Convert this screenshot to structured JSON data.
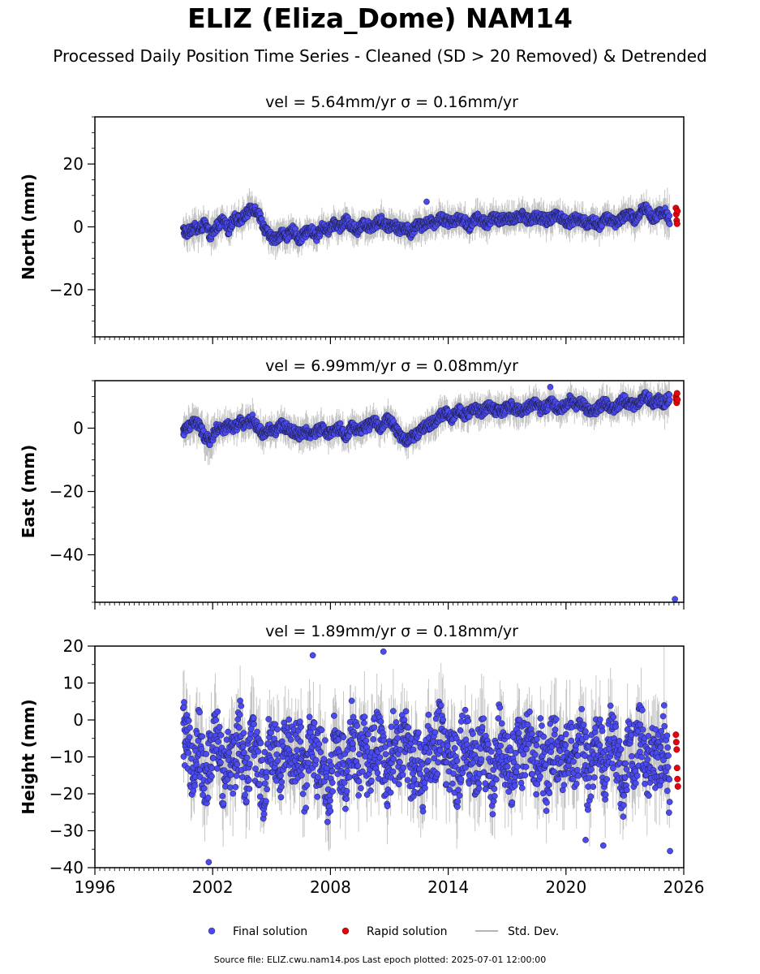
{
  "title": "ELIZ (Eliza_Dome) NAM14",
  "subtitle": "Processed Daily Position Time Series - Cleaned (SD > 20 Removed) & Detrended",
  "footer": "Source file: ELIZ.cwu.nam14.pos  Last epoch plotted: 2025-07-01 12:00:00",
  "colors": {
    "final": "#4a4af0",
    "rapid": "#e8000b",
    "stddev": "#b4b4b4"
  },
  "legend": {
    "final_label": "Final solution",
    "rapid_label": "Rapid solution",
    "stddev_label": "Std. Dev."
  },
  "chart_data": [
    {
      "type": "scatter",
      "title": "vel = 5.64mm/yr   σ = 0.16mm/yr",
      "ylabel": "North (mm)",
      "xlim": [
        1996,
        2026
      ],
      "ylim": [
        -35,
        35
      ],
      "yticks": [
        -20,
        0,
        20
      ],
      "xticks": [
        1996,
        2002,
        2008,
        2014,
        2020,
        2026
      ],
      "grid": false,
      "series": [
        {
          "name": "Final solution",
          "x": [
            2000.5,
            2000.7,
            2001.0,
            2001.3,
            2001.6,
            2001.9,
            2002.2,
            2002.5,
            2002.8,
            2003.1,
            2003.4,
            2003.7,
            2004.0,
            2004.3,
            2004.6,
            2004.9,
            2005.2,
            2005.5,
            2005.8,
            2006.1,
            2006.4,
            2006.7,
            2007.0,
            2007.3,
            2007.6,
            2007.9,
            2008.2,
            2008.5,
            2008.8,
            2009.1,
            2009.4,
            2009.7,
            2010.0,
            2010.3,
            2010.6,
            2010.9,
            2011.2,
            2011.5,
            2011.8,
            2012.1,
            2012.4,
            2012.7,
            2013.0,
            2013.3,
            2013.6,
            2013.9,
            2014.2,
            2014.5,
            2014.8,
            2015.1,
            2015.4,
            2015.7,
            2016.0,
            2016.3,
            2016.6,
            2016.9,
            2017.2,
            2017.5,
            2017.8,
            2018.1,
            2018.4,
            2018.7,
            2019.0,
            2019.3,
            2019.6,
            2019.9,
            2020.2,
            2020.5,
            2020.8,
            2021.1,
            2021.4,
            2021.7,
            2022.0,
            2022.3,
            2022.6,
            2022.9,
            2023.2,
            2023.5,
            2023.8,
            2024.1,
            2024.4,
            2024.7,
            2025.0,
            2025.3
          ],
          "y": [
            -1,
            -2,
            0,
            -1,
            1,
            -3,
            0,
            2,
            -1,
            3,
            2,
            4,
            6,
            5,
            0,
            -3,
            -4,
            -2,
            -3,
            -1,
            -4,
            -2,
            -1,
            -3,
            0,
            -1,
            1,
            0,
            2,
            0,
            -1,
            1,
            0,
            1,
            2,
            0,
            1,
            -1,
            0,
            -2,
            1,
            0,
            2,
            1,
            3,
            2,
            1,
            3,
            2,
            0,
            3,
            2,
            1,
            3,
            2,
            3,
            2,
            3,
            4,
            2,
            3,
            3,
            2,
            3,
            4,
            2,
            1,
            3,
            2,
            1,
            2,
            0,
            3,
            2,
            1,
            3,
            4,
            2,
            5,
            6,
            3,
            4,
            5,
            2
          ],
          "sd": [
            4,
            4,
            5,
            4,
            4,
            5,
            4,
            4,
            4,
            4,
            4,
            4,
            4,
            4,
            4,
            4,
            4,
            4,
            4,
            4,
            4,
            4,
            4,
            4,
            4,
            4,
            4,
            4,
            4,
            4,
            4,
            4,
            4,
            4,
            4,
            4,
            4,
            4,
            4,
            4,
            4,
            4,
            4,
            4,
            4,
            4,
            4,
            4,
            4,
            4,
            4,
            4,
            4,
            4,
            4,
            4,
            4,
            4,
            4,
            4,
            4,
            4,
            4,
            4,
            4,
            4,
            4,
            4,
            4,
            4,
            4,
            4,
            4,
            4,
            4,
            4,
            4,
            4,
            4,
            4,
            4,
            4,
            6,
            6
          ]
        },
        {
          "name": "Rapid solution",
          "x": [
            2025.6,
            2025.62,
            2025.64,
            2025.66,
            2025.68
          ],
          "y": [
            6,
            4,
            2,
            1,
            5
          ],
          "sd": [
            0,
            0,
            0,
            0,
            0
          ]
        }
      ],
      "outliers": [
        {
          "x": 2012.9,
          "y": 8
        }
      ]
    },
    {
      "type": "scatter",
      "title": "vel = 6.99mm/yr   σ = 0.08mm/yr",
      "ylabel": "East (mm)",
      "xlim": [
        1996,
        2026
      ],
      "ylim": [
        -55,
        15
      ],
      "yticks": [
        -40,
        -20,
        0
      ],
      "xticks": [
        1996,
        2002,
        2008,
        2014,
        2020,
        2026
      ],
      "grid": false,
      "series": [
        {
          "name": "Final solution",
          "x": [
            2000.5,
            2000.7,
            2001.0,
            2001.3,
            2001.6,
            2001.9,
            2002.2,
            2002.5,
            2002.8,
            2003.1,
            2003.4,
            2003.7,
            2004.0,
            2004.3,
            2004.6,
            2004.9,
            2005.2,
            2005.5,
            2005.8,
            2006.1,
            2006.4,
            2006.7,
            2007.0,
            2007.3,
            2007.6,
            2007.9,
            2008.2,
            2008.5,
            2008.8,
            2009.1,
            2009.4,
            2009.7,
            2010.0,
            2010.3,
            2010.6,
            2010.9,
            2011.2,
            2011.5,
            2011.8,
            2012.1,
            2012.4,
            2012.7,
            2013.0,
            2013.3,
            2013.6,
            2013.9,
            2014.2,
            2014.5,
            2014.8,
            2015.1,
            2015.4,
            2015.7,
            2016.0,
            2016.3,
            2016.6,
            2016.9,
            2017.2,
            2017.5,
            2017.8,
            2018.1,
            2018.4,
            2018.7,
            2019.0,
            2019.3,
            2019.6,
            2019.9,
            2020.2,
            2020.5,
            2020.8,
            2021.1,
            2021.4,
            2021.7,
            2022.0,
            2022.3,
            2022.6,
            2022.9,
            2023.2,
            2023.5,
            2023.8,
            2024.1,
            2024.4,
            2024.7,
            2025.0,
            2025.3
          ],
          "y": [
            -1,
            0,
            2,
            1,
            -3,
            -4,
            0,
            -1,
            1,
            0,
            2,
            1,
            3,
            0,
            -2,
            0,
            -1,
            1,
            0,
            -1,
            -2,
            -1,
            -2,
            -1,
            0,
            -2,
            -1,
            0,
            -3,
            1,
            -1,
            0,
            1,
            2,
            0,
            3,
            1,
            -2,
            -4,
            -3,
            -2,
            0,
            1,
            2,
            4,
            5,
            3,
            6,
            4,
            5,
            6,
            5,
            7,
            6,
            5,
            6,
            7,
            6,
            5,
            7,
            8,
            6,
            7,
            8,
            6,
            7,
            9,
            7,
            8,
            6,
            5,
            7,
            8,
            6,
            7,
            9,
            8,
            7,
            9,
            10,
            8,
            9,
            8,
            10
          ],
          "sd": [
            4,
            4,
            5,
            4,
            6,
            5,
            4,
            4,
            4,
            4,
            4,
            4,
            4,
            4,
            4,
            4,
            4,
            4,
            4,
            4,
            4,
            4,
            4,
            4,
            4,
            4,
            4,
            4,
            4,
            4,
            4,
            4,
            4,
            4,
            4,
            4,
            4,
            4,
            4,
            4,
            4,
            4,
            4,
            4,
            4,
            4,
            4,
            4,
            4,
            4,
            4,
            4,
            4,
            4,
            4,
            4,
            4,
            4,
            4,
            4,
            4,
            4,
            4,
            4,
            4,
            4,
            4,
            4,
            4,
            4,
            4,
            4,
            4,
            4,
            4,
            4,
            4,
            4,
            4,
            4,
            4,
            4,
            6,
            7
          ]
        },
        {
          "name": "Rapid solution",
          "x": [
            2025.6,
            2025.62,
            2025.64,
            2025.66,
            2025.68
          ],
          "y": [
            10,
            9,
            8,
            11,
            9
          ],
          "sd": [
            0,
            0,
            0,
            0,
            0
          ]
        }
      ],
      "outliers": [
        {
          "x": 2025.55,
          "y": -54
        },
        {
          "x": 2019.2,
          "y": 13
        }
      ]
    },
    {
      "type": "scatter",
      "title": "vel = 1.89mm/yr   σ = 0.18mm/yr",
      "ylabel": "Height (mm)",
      "xlim": [
        1996,
        2026
      ],
      "ylim": [
        -40,
        20
      ],
      "yticks": [
        -40,
        -30,
        -20,
        -10,
        0,
        10,
        20
      ],
      "xticks": [
        1996,
        2002,
        2008,
        2014,
        2020,
        2026
      ],
      "xticklabels": [
        "1996",
        "2002",
        "2008",
        "2014",
        "2020",
        "2026"
      ],
      "grid": false,
      "series": [
        {
          "name": "Final solution",
          "x": [
            2000.5,
            2000.7,
            2001.0,
            2001.3,
            2001.6,
            2001.9,
            2002.2,
            2002.5,
            2002.8,
            2003.1,
            2003.4,
            2003.7,
            2004.0,
            2004.3,
            2004.6,
            2004.9,
            2005.2,
            2005.5,
            2005.8,
            2006.1,
            2006.4,
            2006.7,
            2007.0,
            2007.3,
            2007.6,
            2007.9,
            2008.2,
            2008.5,
            2008.8,
            2009.1,
            2009.4,
            2009.7,
            2010.0,
            2010.3,
            2010.6,
            2010.9,
            2011.2,
            2011.5,
            2011.8,
            2012.1,
            2012.4,
            2012.7,
            2013.0,
            2013.3,
            2013.6,
            2013.9,
            2014.2,
            2014.5,
            2014.8,
            2015.1,
            2015.4,
            2015.7,
            2016.0,
            2016.3,
            2016.6,
            2016.9,
            2017.2,
            2017.5,
            2017.8,
            2018.1,
            2018.4,
            2018.7,
            2019.0,
            2019.3,
            2019.6,
            2019.9,
            2020.2,
            2020.5,
            2020.8,
            2021.1,
            2021.4,
            2021.7,
            2022.0,
            2022.3,
            2022.6,
            2022.9,
            2023.2,
            2023.5,
            2023.8,
            2024.1,
            2024.4,
            2024.7,
            2025.0,
            2025.3
          ],
          "y": [
            -2,
            -8,
            -12,
            -5,
            -18,
            -10,
            -4,
            -15,
            -8,
            -12,
            -2,
            -16,
            -6,
            -10,
            -20,
            -5,
            -9,
            -14,
            -3,
            -11,
            -7,
            -18,
            -4,
            -13,
            -8,
            -22,
            -6,
            -10,
            -16,
            -2,
            -12,
            -7,
            -15,
            -4,
            -10,
            -18,
            -6,
            -12,
            -3,
            -14,
            -9,
            -17,
            -5,
            -11,
            -2,
            -13,
            -8,
            -16,
            -4,
            -10,
            -14,
            -6,
            -12,
            -18,
            -3,
            -9,
            -15,
            -7,
            -11,
            -2,
            -13,
            -8,
            -17,
            -5,
            -10,
            -14,
            -6,
            -12,
            -3,
            -16,
            -9,
            -7,
            -13,
            -4,
            -11,
            -18,
            -6,
            -10,
            -2,
            -14,
            -8,
            -12,
            -5,
            -20
          ],
          "sd": [
            8,
            8,
            10,
            9,
            8,
            9,
            9,
            9,
            9,
            9,
            9,
            9,
            9,
            9,
            9,
            9,
            9,
            9,
            9,
            9,
            9,
            9,
            9,
            9,
            9,
            9,
            9,
            9,
            9,
            9,
            9,
            9,
            9,
            9,
            9,
            9,
            9,
            9,
            9,
            9,
            9,
            9,
            9,
            9,
            9,
            9,
            9,
            9,
            9,
            9,
            9,
            9,
            9,
            9,
            9,
            9,
            9,
            9,
            9,
            9,
            9,
            9,
            9,
            9,
            9,
            9,
            9,
            9,
            9,
            9,
            9,
            9,
            9,
            9,
            9,
            9,
            9,
            9,
            9,
            9,
            9,
            9,
            12,
            14
          ]
        },
        {
          "name": "Rapid solution",
          "x": [
            2025.6,
            2025.62,
            2025.64,
            2025.66,
            2025.68,
            2025.7
          ],
          "y": [
            -4,
            -6,
            -8,
            -13,
            -16,
            -18
          ],
          "sd": [
            0,
            0,
            0,
            0,
            0,
            0
          ]
        }
      ],
      "outliers": [
        {
          "x": 2001.8,
          "y": -38.5
        },
        {
          "x": 2021.0,
          "y": -32.5
        },
        {
          "x": 2021.9,
          "y": -34
        },
        {
          "x": 2025.3,
          "y": -35.5
        },
        {
          "x": 2010.7,
          "y": 18.5
        },
        {
          "x": 2007.1,
          "y": 17.5
        }
      ]
    }
  ]
}
